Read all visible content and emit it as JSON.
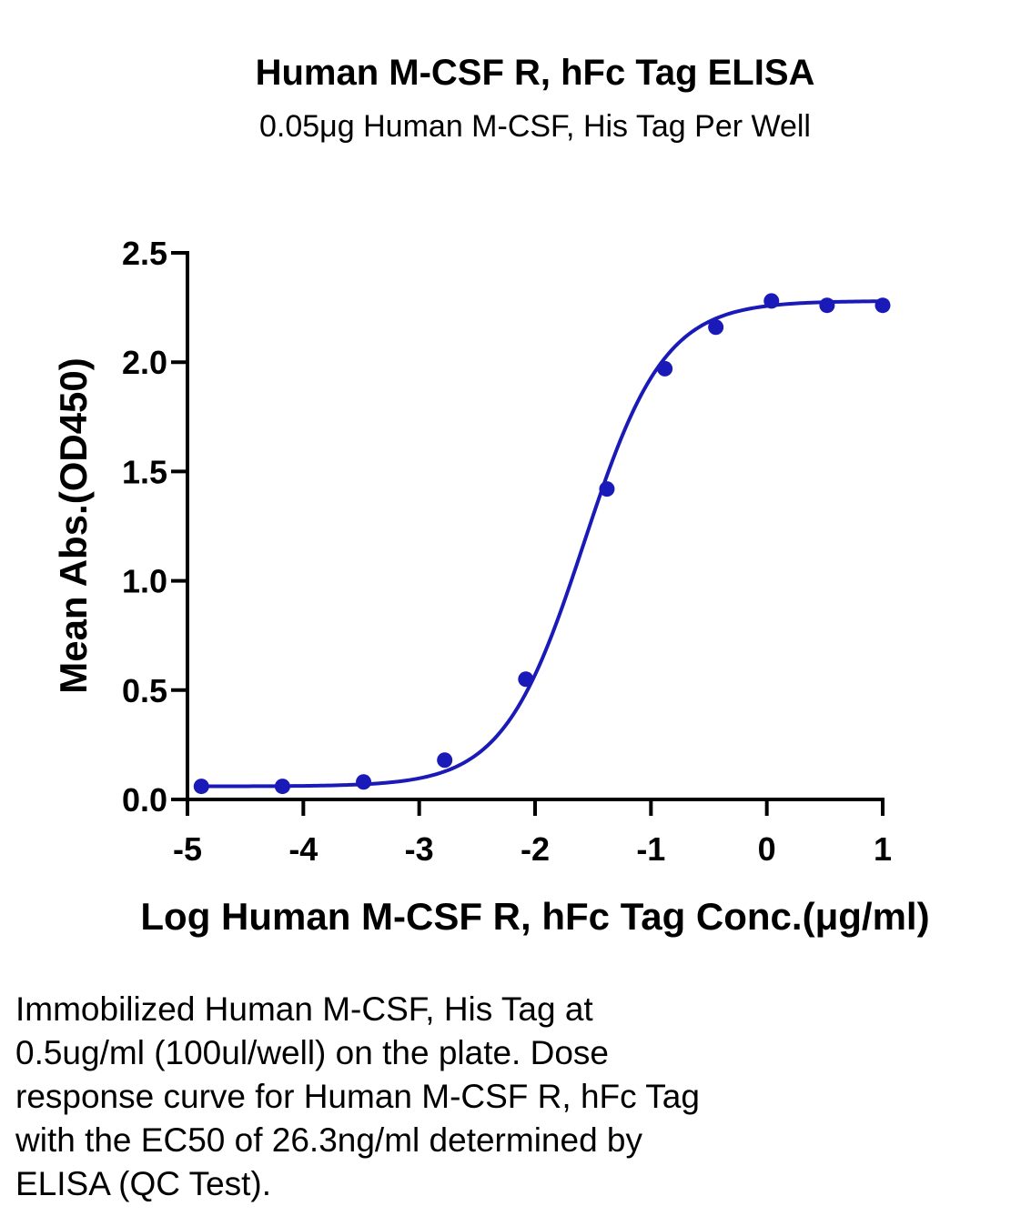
{
  "chart_data": {
    "type": "scatter",
    "title": "Human M-CSF R, hFc Tag ELISA",
    "subtitle": "0.05μg Human M-CSF, His Tag Per Well",
    "xlabel": "Log Human M-CSF R, hFc Tag Conc.(μg/ml)",
    "ylabel": "Mean Abs.(OD450)",
    "xlim": [
      -5,
      1
    ],
    "ylim": [
      0,
      2.5
    ],
    "x_ticks": [
      "-5",
      "-4",
      "-3",
      "-2",
      "-1",
      "0",
      "1"
    ],
    "y_ticks": [
      "0.0",
      "0.5",
      "1.0",
      "1.5",
      "2.0",
      "2.5"
    ],
    "grid": false,
    "series": [
      {
        "color": "#1a1ab8",
        "points": [
          {
            "x": -4.88,
            "y": 0.06
          },
          {
            "x": -4.18,
            "y": 0.06
          },
          {
            "x": -3.48,
            "y": 0.08
          },
          {
            "x": -2.78,
            "y": 0.18
          },
          {
            "x": -2.08,
            "y": 0.55
          },
          {
            "x": -1.38,
            "y": 1.42
          },
          {
            "x": -0.88,
            "y": 1.97
          },
          {
            "x": -0.44,
            "y": 2.16
          },
          {
            "x": 0.04,
            "y": 2.28
          },
          {
            "x": 0.52,
            "y": 2.26
          },
          {
            "x": 1.0,
            "y": 2.26
          }
        ],
        "fit": {
          "model": "4PL",
          "bottom": 0.06,
          "top": 2.28,
          "logEC50": -1.58,
          "hill": 1.25
        }
      }
    ]
  },
  "caption_lines": [
    "Immobilized Human M-CSF, His Tag at",
    "0.5ug/ml (100ul/well) on the plate. Dose",
    "response curve for Human M-CSF R, hFc Tag",
    "with the EC50 of 26.3ng/ml determined by",
    "ELISA (QC Test)."
  ]
}
